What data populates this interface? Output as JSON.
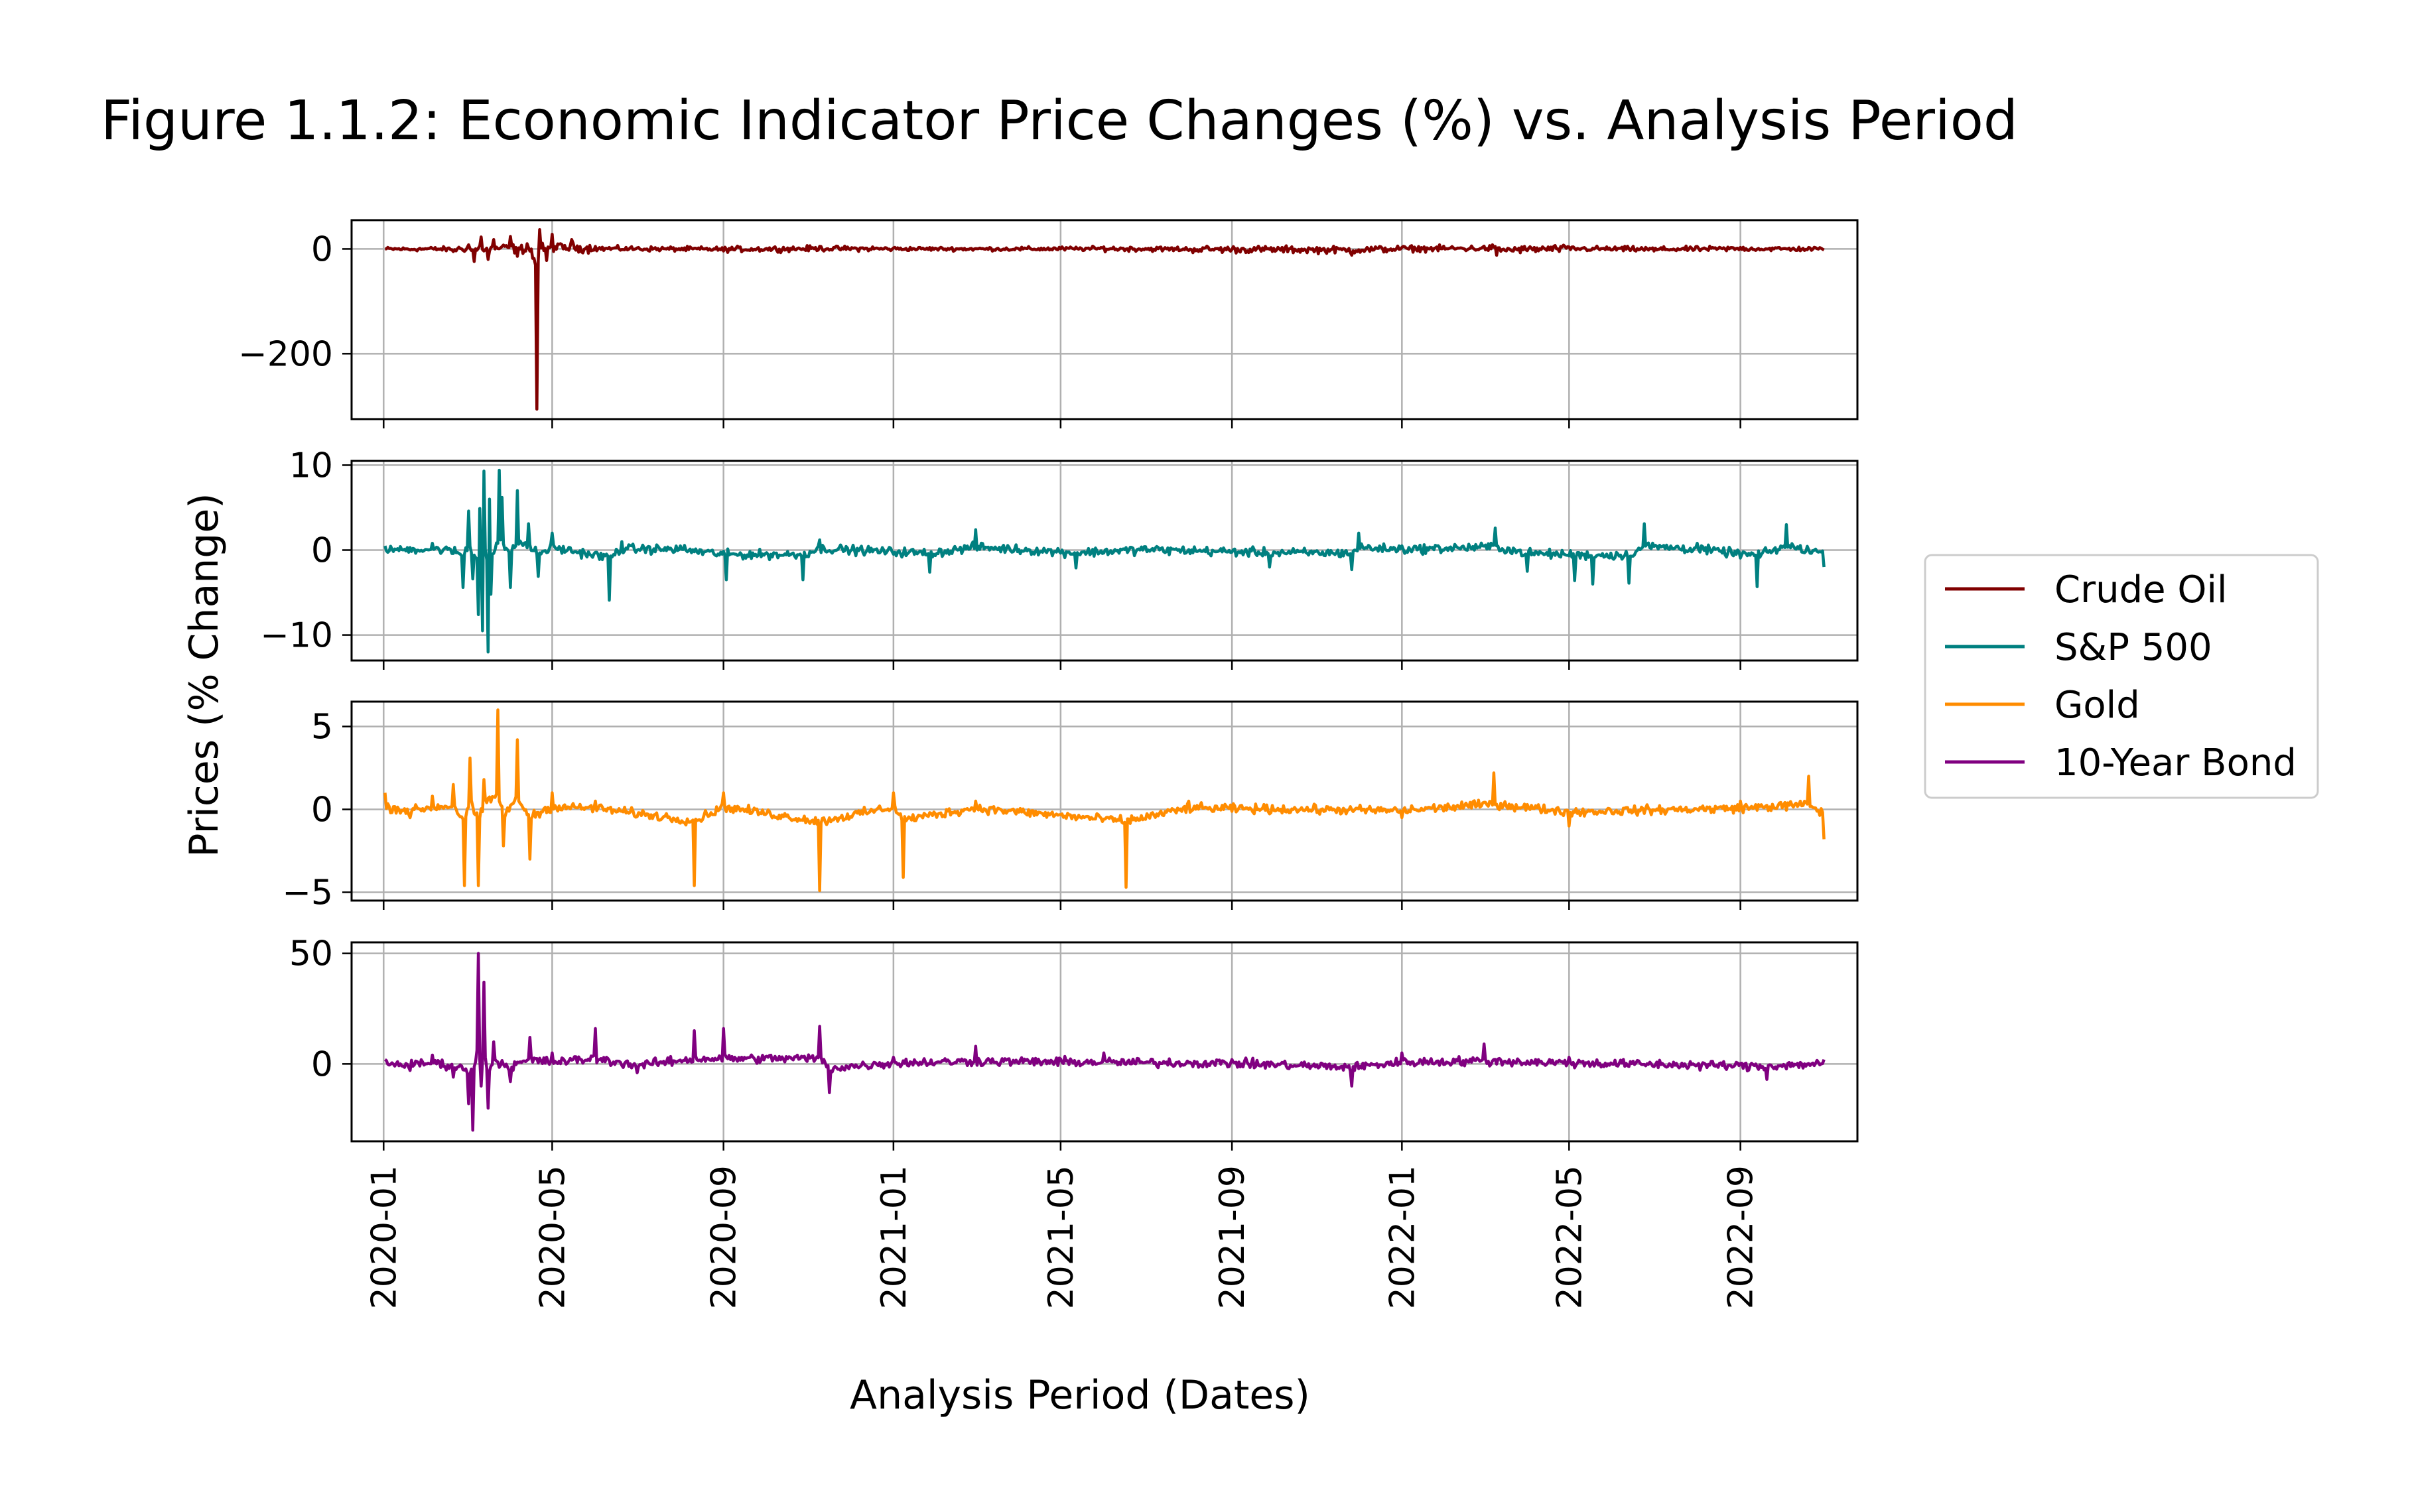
{
  "chart_data": {
    "type": "line",
    "title": "Figure 1.1.2: Economic Indicator Price Changes (%) vs. Analysis Period",
    "xlabel": "Analysis Period (Dates)",
    "ylabel": "Prices (% Change)",
    "grid": true,
    "legend_position": "right",
    "x_range": [
      "2019-12-09",
      "2022-11-24"
    ],
    "x_ticks": [
      "2020-01",
      "2020-05",
      "2020-09",
      "2021-01",
      "2021-05",
      "2021-09",
      "2022-01",
      "2022-05",
      "2022-09"
    ],
    "series": [
      {
        "name": "Crude Oil",
        "color": "#800000",
        "ylim": [
          -325,
          55
        ],
        "y_ticks": [
          0,
          -200
        ],
        "y_tick_labels": [
          "0",
          "−200"
        ],
        "points": [
          [
            "2020-01-02",
            0
          ],
          [
            "2020-01-20",
            -2
          ],
          [
            "2020-02-05",
            1
          ],
          [
            "2020-02-20",
            -5
          ],
          [
            "2020-03-02",
            8
          ],
          [
            "2020-03-06",
            -24
          ],
          [
            "2020-03-11",
            23
          ],
          [
            "2020-03-16",
            -20
          ],
          [
            "2020-03-20",
            18
          ],
          [
            "2020-03-25",
            2
          ],
          [
            "2020-04-01",
            24
          ],
          [
            "2020-04-06",
            -14
          ],
          [
            "2020-04-13",
            10
          ],
          [
            "2020-04-17",
            -18
          ],
          [
            "2020-04-20",
            -306
          ],
          [
            "2020-04-22",
            37
          ],
          [
            "2020-04-27",
            -22
          ],
          [
            "2020-05-01",
            28
          ],
          [
            "2020-05-07",
            10
          ],
          [
            "2020-05-15",
            18
          ],
          [
            "2020-06-01",
            5
          ],
          [
            "2020-07-01",
            2
          ],
          [
            "2020-09-01",
            -4
          ],
          [
            "2020-11-09",
            5
          ],
          [
            "2021-01-01",
            2
          ],
          [
            "2021-04-01",
            0
          ],
          [
            "2021-06-01",
            4
          ],
          [
            "2021-08-01",
            -3
          ],
          [
            "2021-11-26",
            -12
          ],
          [
            "2022-01-01",
            3
          ],
          [
            "2022-03-07",
            8
          ],
          [
            "2022-03-10",
            -12
          ],
          [
            "2022-05-01",
            4
          ],
          [
            "2022-07-01",
            -4
          ],
          [
            "2022-09-01",
            3
          ],
          [
            "2022-10-31",
            -2
          ]
        ]
      },
      {
        "name": "S&P 500",
        "color": "#008080",
        "ylim": [
          -13,
          10.5
        ],
        "y_ticks": [
          10,
          0,
          -10
        ],
        "y_tick_labels": [
          "10",
          "0",
          "−10"
        ],
        "points": [
          [
            "2020-01-02",
            0.5
          ],
          [
            "2020-01-20",
            0.3
          ],
          [
            "2020-02-05",
            0.8
          ],
          [
            "2020-02-20",
            -0.4
          ],
          [
            "2020-02-27",
            -4.4
          ],
          [
            "2020-03-02",
            4.6
          ],
          [
            "2020-03-05",
            -3.4
          ],
          [
            "2020-03-09",
            -7.6
          ],
          [
            "2020-03-10",
            4.9
          ],
          [
            "2020-03-12",
            -9.5
          ],
          [
            "2020-03-13",
            9.3
          ],
          [
            "2020-03-16",
            -12.0
          ],
          [
            "2020-03-17",
            6.0
          ],
          [
            "2020-03-18",
            -5.2
          ],
          [
            "2020-03-24",
            9.4
          ],
          [
            "2020-03-26",
            6.2
          ],
          [
            "2020-04-01",
            -4.4
          ],
          [
            "2020-04-06",
            7.0
          ],
          [
            "2020-04-14",
            3.1
          ],
          [
            "2020-04-21",
            -3.1
          ],
          [
            "2020-05-01",
            2.0
          ],
          [
            "2020-06-11",
            -5.9
          ],
          [
            "2020-06-20",
            1.0
          ],
          [
            "2020-08-01",
            0.5
          ],
          [
            "2020-09-03",
            -3.5
          ],
          [
            "2020-10-28",
            -3.5
          ],
          [
            "2020-11-09",
            1.2
          ],
          [
            "2021-01-27",
            -2.6
          ],
          [
            "2021-03-01",
            2.4
          ],
          [
            "2021-05-12",
            -2.1
          ],
          [
            "2021-07-01",
            0.4
          ],
          [
            "2021-09-28",
            -2.0
          ],
          [
            "2021-11-26",
            -2.3
          ],
          [
            "2021-12-01",
            2.0
          ],
          [
            "2022-01-01",
            0.5
          ],
          [
            "2022-03-09",
            2.6
          ],
          [
            "2022-04-01",
            -2.5
          ],
          [
            "2022-05-05",
            -3.6
          ],
          [
            "2022-05-18",
            -4.0
          ],
          [
            "2022-06-13",
            -3.9
          ],
          [
            "2022-06-24",
            3.1
          ],
          [
            "2022-08-01",
            0.8
          ],
          [
            "2022-09-13",
            -4.3
          ],
          [
            "2022-10-04",
            3.0
          ],
          [
            "2022-10-31",
            -2.0
          ]
        ]
      },
      {
        "name": "Gold",
        "color": "#ff8c00",
        "ylim": [
          -5.5,
          6.5
        ],
        "y_ticks": [
          5,
          0,
          -5
        ],
        "y_tick_labels": [
          "5",
          "0",
          "−5"
        ],
        "points": [
          [
            "2020-01-02",
            1.0
          ],
          [
            "2020-01-20",
            -0.5
          ],
          [
            "2020-02-05",
            0.8
          ],
          [
            "2020-02-20",
            1.5
          ],
          [
            "2020-02-28",
            -4.6
          ],
          [
            "2020-03-03",
            3.1
          ],
          [
            "2020-03-09",
            -4.6
          ],
          [
            "2020-03-13",
            1.8
          ],
          [
            "2020-03-23",
            6.0
          ],
          [
            "2020-03-27",
            -2.2
          ],
          [
            "2020-04-06",
            4.2
          ],
          [
            "2020-04-15",
            -3.0
          ],
          [
            "2020-05-01",
            1.0
          ],
          [
            "2020-06-01",
            0.5
          ],
          [
            "2020-08-11",
            -4.6
          ],
          [
            "2020-09-01",
            1.0
          ],
          [
            "2020-11-09",
            -4.9
          ],
          [
            "2021-01-01",
            1.0
          ],
          [
            "2021-01-08",
            -4.1
          ],
          [
            "2021-03-01",
            0.5
          ],
          [
            "2021-06-17",
            -4.7
          ],
          [
            "2021-08-01",
            0.5
          ],
          [
            "2022-01-01",
            -0.5
          ],
          [
            "2022-03-08",
            2.2
          ],
          [
            "2022-05-01",
            -1.0
          ],
          [
            "2022-09-01",
            0.5
          ],
          [
            "2022-10-20",
            2.0
          ],
          [
            "2022-10-31",
            -1.8
          ]
        ]
      },
      {
        "name": "10-Year Bond",
        "color": "#800080",
        "ylim": [
          -35,
          55
        ],
        "y_ticks": [
          50,
          0
        ],
        "y_tick_labels": [
          "50",
          "0"
        ],
        "points": [
          [
            "2020-01-02",
            2
          ],
          [
            "2020-01-20",
            -3
          ],
          [
            "2020-02-05",
            4
          ],
          [
            "2020-02-20",
            -6
          ],
          [
            "2020-03-02",
            -18
          ],
          [
            "2020-03-05",
            -30
          ],
          [
            "2020-03-09",
            50
          ],
          [
            "2020-03-11",
            -10
          ],
          [
            "2020-03-13",
            37
          ],
          [
            "2020-03-16",
            -20
          ],
          [
            "2020-03-20",
            10
          ],
          [
            "2020-04-01",
            -8
          ],
          [
            "2020-04-15",
            12
          ],
          [
            "2020-05-01",
            5
          ],
          [
            "2020-06-01",
            16
          ],
          [
            "2020-07-01",
            -4
          ],
          [
            "2020-08-11",
            15
          ],
          [
            "2020-09-01",
            16
          ],
          [
            "2020-11-09",
            17
          ],
          [
            "2020-11-16",
            -13
          ],
          [
            "2021-01-01",
            3
          ],
          [
            "2021-03-01",
            8
          ],
          [
            "2021-06-01",
            5
          ],
          [
            "2021-09-01",
            2
          ],
          [
            "2021-11-26",
            -10
          ],
          [
            "2022-01-01",
            5
          ],
          [
            "2022-03-01",
            9
          ],
          [
            "2022-05-01",
            3
          ],
          [
            "2022-09-20",
            -7
          ],
          [
            "2022-10-31",
            2
          ]
        ]
      }
    ]
  }
}
